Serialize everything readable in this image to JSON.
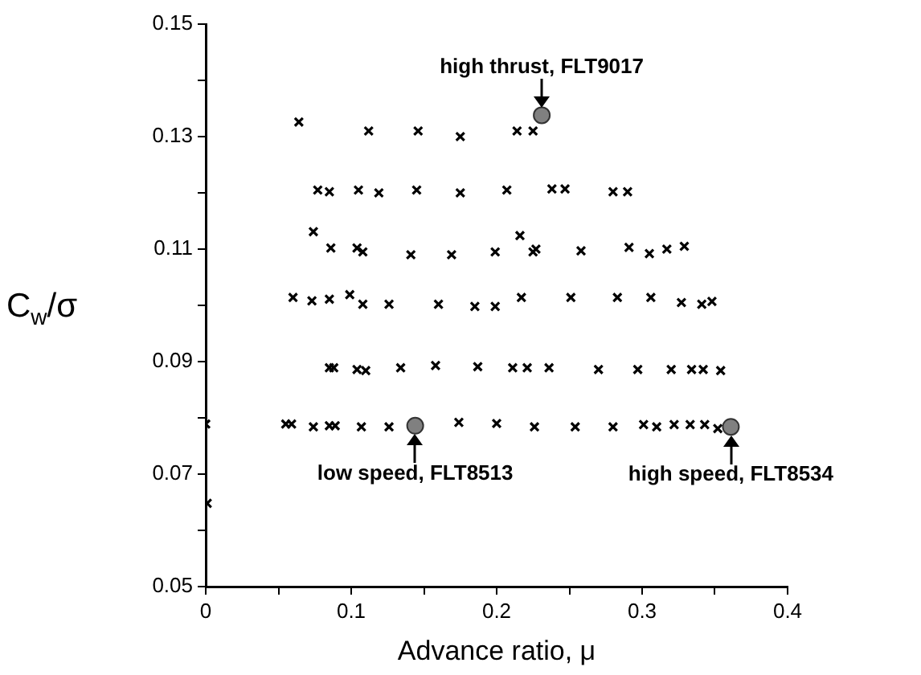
{
  "chart_data": {
    "type": "scatter",
    "xlabel": "Advance ratio, μ",
    "ylabel": "C$_{w}$/σ",
    "xlim": [
      0,
      0.4
    ],
    "xticks": [
      0,
      {
        "value": 0.05,
        "label": null
      },
      0.1,
      {
        "value": 0.15,
        "label": null
      },
      0.2,
      {
        "value": 0.25,
        "label": null
      },
      0.3,
      {
        "value": 0.35,
        "label": null
      },
      0.4
    ],
    "ylim": [
      0.05,
      0.15
    ],
    "yticks": [
      0.05,
      {
        "value": 0.06,
        "label": null
      },
      0.07,
      {
        "value": 0.08,
        "label": null
      },
      0.09,
      {
        "value": 0.1,
        "label": null
      },
      0.11,
      {
        "value": 0.12,
        "label": null
      },
      0.13,
      {
        "value": 0.14,
        "label": null
      },
      0.15
    ],
    "grid": false,
    "marker": "cross",
    "series": [
      {
        "color": "#000000",
        "x": [
          0.064,
          0.112,
          0.146,
          0.175,
          0.214,
          0.225,
          0.077,
          0.085,
          0.105,
          0.119,
          0.145,
          0.175,
          0.207,
          0.238,
          0.247,
          0.28,
          0.29,
          0.074,
          0.086,
          0.104,
          0.108,
          0.141,
          0.169,
          0.199,
          0.216,
          0.225,
          0.227,
          0.258,
          0.291,
          0.305,
          0.317,
          0.329,
          0.06,
          0.073,
          0.085,
          0.099,
          0.108,
          0.126,
          0.16,
          0.185,
          0.199,
          0.217,
          0.251,
          0.283,
          0.306,
          0.327,
          0.341,
          0.348,
          0.085,
          0.088,
          0.104,
          0.11,
          0.134,
          0.158,
          0.187,
          0.211,
          0.221,
          0.236,
          0.27,
          0.297,
          0.32,
          0.334,
          0.342,
          0.354,
          0,
          0.055,
          0.059,
          0.074,
          0.085,
          0.089,
          0.107,
          0.126,
          0.174,
          0.2,
          0.226,
          0.254,
          0.28,
          0.301,
          0.31,
          0.322,
          0.333,
          0.343,
          0.352,
          0.001
        ],
        "values": [
          0.1326,
          0.131,
          0.131,
          0.13,
          0.131,
          0.131,
          0.1205,
          0.1202,
          0.1205,
          0.12,
          0.1205,
          0.12,
          0.1205,
          0.1207,
          0.1207,
          0.1202,
          0.1202,
          0.1131,
          0.1102,
          0.1102,
          0.1095,
          0.109,
          0.109,
          0.1095,
          0.1124,
          0.1095,
          0.11,
          0.1097,
          0.1103,
          0.1092,
          0.11,
          0.1105,
          0.1014,
          0.1008,
          0.1011,
          0.1019,
          0.1002,
          0.1002,
          0.1002,
          0.0998,
          0.0998,
          0.1014,
          0.1014,
          0.1014,
          0.1014,
          0.1005,
          0.1002,
          0.1007,
          0.0889,
          0.0889,
          0.0886,
          0.0884,
          0.0889,
          0.0893,
          0.0891,
          0.0889,
          0.0889,
          0.0889,
          0.0886,
          0.0886,
          0.0886,
          0.0886,
          0.0886,
          0.0884,
          0.0789,
          0.0789,
          0.0789,
          0.0784,
          0.0786,
          0.0786,
          0.0784,
          0.0784,
          0.0792,
          0.079,
          0.0784,
          0.0784,
          0.0784,
          0.0788,
          0.0784,
          0.0788,
          0.0788,
          0.0788,
          0.0781,
          0.0648
        ]
      },
      {
        "color": "#808080",
        "marker": "circle",
        "x": [
          0.231,
          0.144,
          0.361
        ],
        "values": [
          0.1338,
          0.0786,
          0.0784
        ]
      }
    ],
    "annotations": [
      {
        "text": "high thrust, FLT9017",
        "x": 0.231,
        "y": 0.1338
      },
      {
        "text": "low speed, FLT8513",
        "x": 0.144,
        "y": 0.0786
      },
      {
        "text": "high speed, FLT8534",
        "x": 0.361,
        "y": 0.0784
      }
    ]
  }
}
